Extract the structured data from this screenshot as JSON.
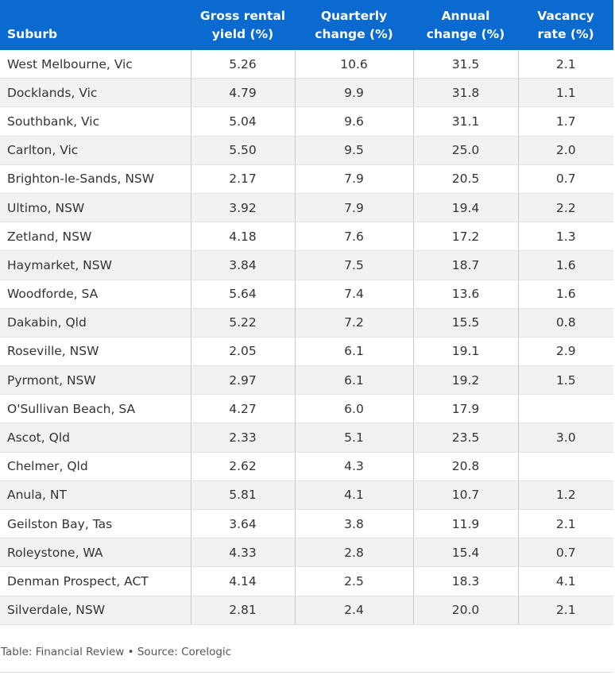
{
  "table": {
    "headers": [
      "Suburb",
      "Gross rental yield (%)",
      "Quarterly change (%)",
      "Annual change (%)",
      "Vacancy rate (%)"
    ],
    "rows": [
      [
        "West Melbourne, Vic",
        "5.26",
        "10.6",
        "31.5",
        "2.1"
      ],
      [
        "Docklands, Vic",
        "4.79",
        "9.9",
        "31.8",
        "1.1"
      ],
      [
        "Southbank, Vic",
        "5.04",
        "9.6",
        "31.1",
        "1.7"
      ],
      [
        "Carlton, Vic",
        "5.50",
        "9.5",
        "25.0",
        "2.0"
      ],
      [
        "Brighton-le-Sands, NSW",
        "2.17",
        "7.9",
        "20.5",
        "0.7"
      ],
      [
        "Ultimo, NSW",
        "3.92",
        "7.9",
        "19.4",
        "2.2"
      ],
      [
        "Zetland, NSW",
        "4.18",
        "7.6",
        "17.2",
        "1.3"
      ],
      [
        "Haymarket, NSW",
        "3.84",
        "7.5",
        "18.7",
        "1.6"
      ],
      [
        "Woodforde, SA",
        "5.64",
        "7.4",
        "13.6",
        "1.6"
      ],
      [
        "Dakabin, Qld",
        "5.22",
        "7.2",
        "15.5",
        "0.8"
      ],
      [
        "Roseville, NSW",
        "2.05",
        "6.1",
        "19.1",
        "2.9"
      ],
      [
        "Pyrmont, NSW",
        "2.97",
        "6.1",
        "19.2",
        "1.5"
      ],
      [
        "O'Sullivan Beach, SA",
        "4.27",
        "6.0",
        "17.9",
        ""
      ],
      [
        "Ascot, Qld",
        "2.33",
        "5.1",
        "23.5",
        "3.0"
      ],
      [
        "Chelmer, Qld",
        "2.62",
        "4.3",
        "20.8",
        ""
      ],
      [
        "Anula, NT",
        "5.81",
        "4.1",
        "10.7",
        "1.2"
      ],
      [
        "Geilston Bay, Tas",
        "3.64",
        "3.8",
        "11.9",
        "2.1"
      ],
      [
        "Roleystone, WA",
        "4.33",
        "2.8",
        "15.4",
        "0.7"
      ],
      [
        "Denman Prospect, ACT",
        "4.14",
        "2.5",
        "18.3",
        "4.1"
      ],
      [
        "Silverdale, NSW",
        "2.81",
        "2.4",
        "20.0",
        "2.1"
      ]
    ]
  },
  "footer": {
    "text": "Table: Financial Review • Source: Corelogic"
  },
  "colors": {
    "header_bg": "#0a6ad0",
    "header_text": "#ffffff",
    "stripe": "#f2f2f2"
  }
}
